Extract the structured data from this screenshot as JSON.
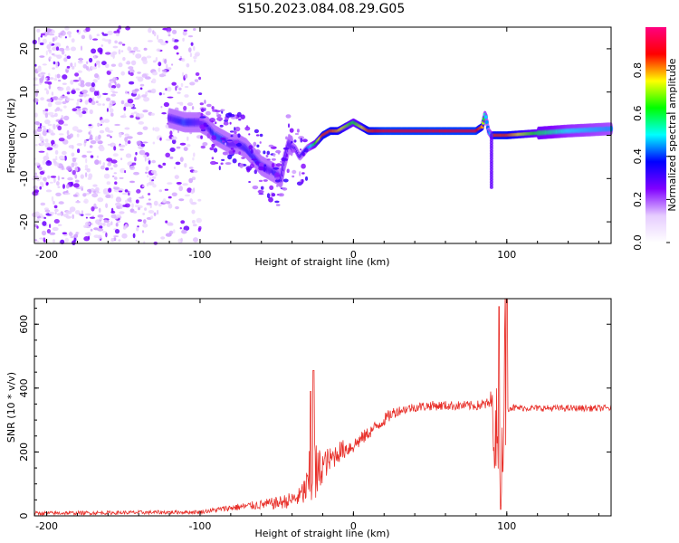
{
  "title": "S150.2023.084.08.29.G05",
  "chart_data": [
    {
      "type": "heatmap",
      "title": "",
      "xlabel": "Height of straight line (km)",
      "ylabel": "Frequency (Hz)",
      "xlim": [
        -208,
        168
      ],
      "ylim": [
        -25,
        25
      ],
      "xticks": [
        -200,
        -100,
        0,
        100
      ],
      "yticks": [
        -20,
        -10,
        0,
        10,
        20
      ],
      "colorbar": {
        "label": "Normalized spectral amplitude",
        "ticks": [
          "0.0",
          "0.2",
          "0.4",
          "0.6",
          "0.8"
        ],
        "range": [
          0,
          1
        ],
        "colors": [
          "#ffffff",
          "#e6ccff",
          "#8000ff",
          "#0000ff",
          "#00ffff",
          "#00ff00",
          "#ffff00",
          "#ff0000",
          "#ff0080"
        ]
      },
      "ridge": {
        "x": [
          -120,
          -110,
          -100,
          -95,
          -90,
          -85,
          -80,
          -75,
          -70,
          -65,
          -60,
          -55,
          -50,
          -47,
          -45,
          -42,
          -38,
          -35,
          -30,
          -25,
          -20,
          -15,
          -10,
          -5,
          0,
          10,
          20,
          40,
          60,
          80,
          84,
          86,
          88,
          90,
          92,
          100,
          120,
          140,
          168
        ],
        "y": [
          4,
          3,
          3,
          2,
          0,
          -1,
          -2,
          -2,
          -3,
          -5,
          -7,
          -8,
          -9,
          -10,
          -6,
          -2,
          -3,
          -5,
          -3,
          -2,
          0,
          1,
          1,
          2,
          3,
          1,
          1,
          1,
          1,
          1,
          2,
          5,
          1,
          0,
          0,
          0,
          0.5,
          1,
          1.5
        ],
        "amplitude": [
          0.3,
          0.4,
          0.3,
          0.3,
          0.4,
          0.4,
          0.3,
          0.3,
          0.35,
          0.35,
          0.35,
          0.3,
          0.35,
          0.3,
          0.3,
          0.3,
          0.3,
          0.3,
          0.4,
          0.6,
          0.85,
          0.85,
          0.8,
          0.7,
          0.6,
          0.85,
          0.9,
          0.9,
          0.9,
          0.9,
          0.8,
          0.5,
          0.4,
          0.5,
          0.85,
          0.85,
          0.6,
          0.5,
          0.45
        ]
      }
    },
    {
      "type": "line",
      "title": "",
      "xlabel": "Height of straight line (km)",
      "ylabel": "SNR (10 * v/v)",
      "xlim": [
        -208,
        168
      ],
      "ylim": [
        0,
        680
      ],
      "xticks": [
        -200,
        -100,
        0,
        100
      ],
      "yticks": [
        0,
        200,
        400,
        600
      ],
      "color": "#e8302a",
      "envelope": {
        "x": [
          -208,
          -150,
          -100,
          -80,
          -60,
          -50,
          -40,
          -35,
          -30,
          -28,
          -26,
          -24,
          -20,
          -15,
          -10,
          -5,
          0,
          10,
          20,
          25,
          30,
          40,
          50,
          60,
          70,
          80,
          88,
          90,
          93,
          95,
          97,
          99,
          100,
          102,
          105,
          110,
          120,
          140,
          168
        ],
        "y": [
          8,
          10,
          12,
          25,
          35,
          40,
          50,
          60,
          90,
          120,
          150,
          120,
          160,
          175,
          200,
          210,
          220,
          260,
          300,
          320,
          330,
          340,
          345,
          345,
          345,
          345,
          350,
          360,
          200,
          400,
          250,
          450,
          340,
          340,
          338,
          338,
          337,
          337,
          337
        ],
        "noise": [
          6,
          6,
          6,
          10,
          15,
          20,
          25,
          30,
          60,
          120,
          150,
          100,
          50,
          40,
          35,
          30,
          25,
          20,
          20,
          20,
          15,
          15,
          15,
          15,
          15,
          15,
          20,
          40,
          160,
          260,
          200,
          300,
          15,
          12,
          12,
          10,
          10,
          10,
          10
        ]
      },
      "peaks": [
        {
          "x": -28,
          "y": 390
        },
        {
          "x": -26,
          "y": 455
        },
        {
          "x": 95,
          "y": 655
        },
        {
          "x": 100,
          "y": 680
        },
        {
          "x": 96,
          "y": 20
        }
      ]
    }
  ]
}
